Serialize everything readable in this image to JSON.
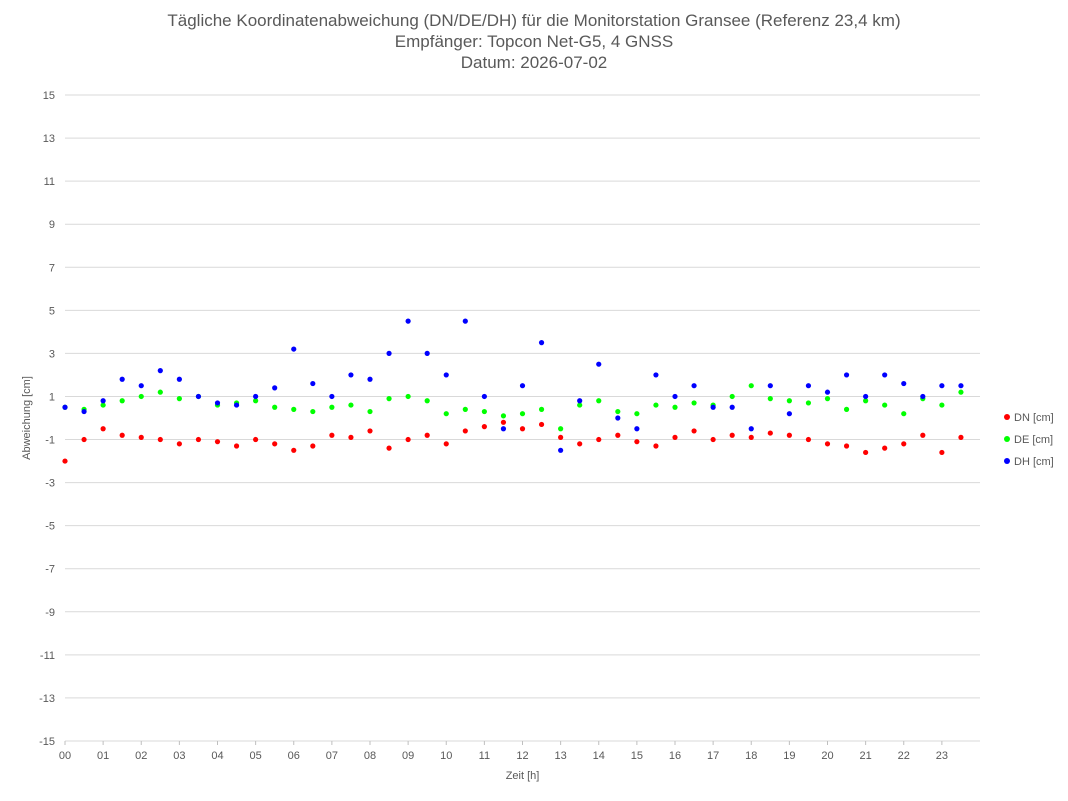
{
  "chart_data": {
    "type": "scatter",
    "title": "Tägliche Koordinatenabweichung (DN/DE/DH) für die Monitorstation Gransee (Referenz 23,4 km)",
    "subtitle": "Empfänger: Topcon Net-G5, 4 GNSS",
    "subtitle2": "Datum: 2026-07-02",
    "xlabel": "Zeit [h]",
    "ylabel": "Abweichung [cm]",
    "xlim": [
      0,
      24
    ],
    "ylim": [
      -15,
      15
    ],
    "x_ticks": [
      "00",
      "01",
      "02",
      "03",
      "04",
      "05",
      "06",
      "07",
      "08",
      "09",
      "10",
      "11",
      "12",
      "13",
      "14",
      "15",
      "16",
      "17",
      "18",
      "19",
      "20",
      "21",
      "22",
      "23"
    ],
    "y_ticks": [
      15,
      13,
      11,
      9,
      7,
      5,
      3,
      1,
      -1,
      -3,
      -5,
      -7,
      -9,
      -11,
      -13,
      -15
    ],
    "grid": true,
    "legend_position": "right",
    "series": [
      {
        "name": "DN [cm]",
        "color": "#ff0000",
        "x": [
          0.0,
          0.5,
          1.0,
          1.5,
          2.0,
          2.5,
          3.0,
          3.5,
          4.0,
          4.5,
          5.0,
          5.5,
          6.0,
          6.5,
          7.0,
          7.5,
          8.0,
          8.5,
          9.0,
          9.5,
          10.0,
          10.5,
          11.0,
          11.5,
          12.0,
          12.5,
          13.0,
          13.5,
          14.0,
          14.5,
          15.0,
          15.5,
          16.0,
          16.5,
          17.0,
          17.5,
          18.0,
          18.5,
          19.0,
          19.5,
          20.0,
          20.5,
          21.0,
          21.5,
          22.0,
          22.5,
          23.0,
          23.5
        ],
        "y": [
          -2.0,
          -1.0,
          -0.5,
          -0.8,
          -0.9,
          -1.0,
          -1.2,
          -1.0,
          -1.1,
          -1.3,
          -1.0,
          -1.2,
          -1.5,
          -1.3,
          -0.8,
          -0.9,
          -0.6,
          -1.4,
          -1.0,
          -0.8,
          -1.2,
          -0.6,
          -0.4,
          -0.2,
          -0.5,
          -0.3,
          -0.9,
          -1.2,
          -1.0,
          -0.8,
          -1.1,
          -1.3,
          -0.9,
          -0.6,
          -1.0,
          -0.8,
          -0.9,
          -0.7,
          -0.8,
          -1.0,
          -1.2,
          -1.3,
          -1.6,
          -1.4,
          -1.2,
          -0.8,
          -1.6,
          -0.9
        ]
      },
      {
        "name": "DE [cm]",
        "color": "#00ff00",
        "x": [
          0.0,
          0.5,
          1.0,
          1.5,
          2.0,
          2.5,
          3.0,
          3.5,
          4.0,
          4.5,
          5.0,
          5.5,
          6.0,
          6.5,
          7.0,
          7.5,
          8.0,
          8.5,
          9.0,
          9.5,
          10.0,
          10.5,
          11.0,
          11.5,
          12.0,
          12.5,
          13.0,
          13.5,
          14.0,
          14.5,
          15.0,
          15.5,
          16.0,
          16.5,
          17.0,
          17.5,
          18.0,
          18.5,
          19.0,
          19.5,
          20.0,
          20.5,
          21.0,
          21.5,
          22.0,
          22.5,
          23.0,
          23.5
        ],
        "y": [
          0.5,
          0.4,
          0.6,
          0.8,
          1.0,
          1.2,
          0.9,
          1.0,
          0.6,
          0.7,
          0.8,
          0.5,
          0.4,
          0.3,
          0.5,
          0.6,
          0.3,
          0.9,
          1.0,
          0.8,
          0.2,
          0.4,
          0.3,
          0.1,
          0.2,
          0.4,
          -0.5,
          0.6,
          0.8,
          0.3,
          0.2,
          0.6,
          0.5,
          0.7,
          0.6,
          1.0,
          1.5,
          0.9,
          0.8,
          0.7,
          0.9,
          0.4,
          0.8,
          0.6,
          0.2,
          0.9,
          0.6,
          1.2
        ]
      },
      {
        "name": "DH [cm]",
        "color": "#0000ff",
        "x": [
          0.0,
          0.5,
          1.0,
          1.5,
          2.0,
          2.5,
          3.0,
          3.5,
          4.0,
          4.5,
          5.0,
          5.5,
          6.0,
          6.5,
          7.0,
          7.5,
          8.0,
          8.5,
          9.0,
          9.5,
          10.0,
          10.5,
          11.0,
          11.5,
          12.0,
          12.5,
          13.0,
          13.5,
          14.0,
          14.5,
          15.0,
          15.5,
          16.0,
          16.5,
          17.0,
          17.5,
          18.0,
          18.5,
          19.0,
          19.5,
          20.0,
          20.5,
          21.0,
          21.5,
          22.0,
          22.5,
          23.0,
          23.5
        ],
        "y": [
          0.5,
          0.3,
          0.8,
          1.8,
          1.5,
          2.2,
          1.8,
          1.0,
          0.7,
          0.6,
          1.0,
          1.4,
          3.2,
          1.6,
          1.0,
          2.0,
          1.8,
          3.0,
          4.5,
          3.0,
          2.0,
          4.5,
          1.0,
          -0.5,
          1.5,
          3.5,
          -1.5,
          0.8,
          2.5,
          0.0,
          -0.5,
          2.0,
          1.0,
          1.5,
          0.5,
          0.5,
          -0.5,
          1.5,
          0.2,
          1.5,
          1.2,
          2.0,
          1.0,
          2.0,
          1.6,
          1.0,
          1.5,
          1.5
        ]
      }
    ]
  }
}
